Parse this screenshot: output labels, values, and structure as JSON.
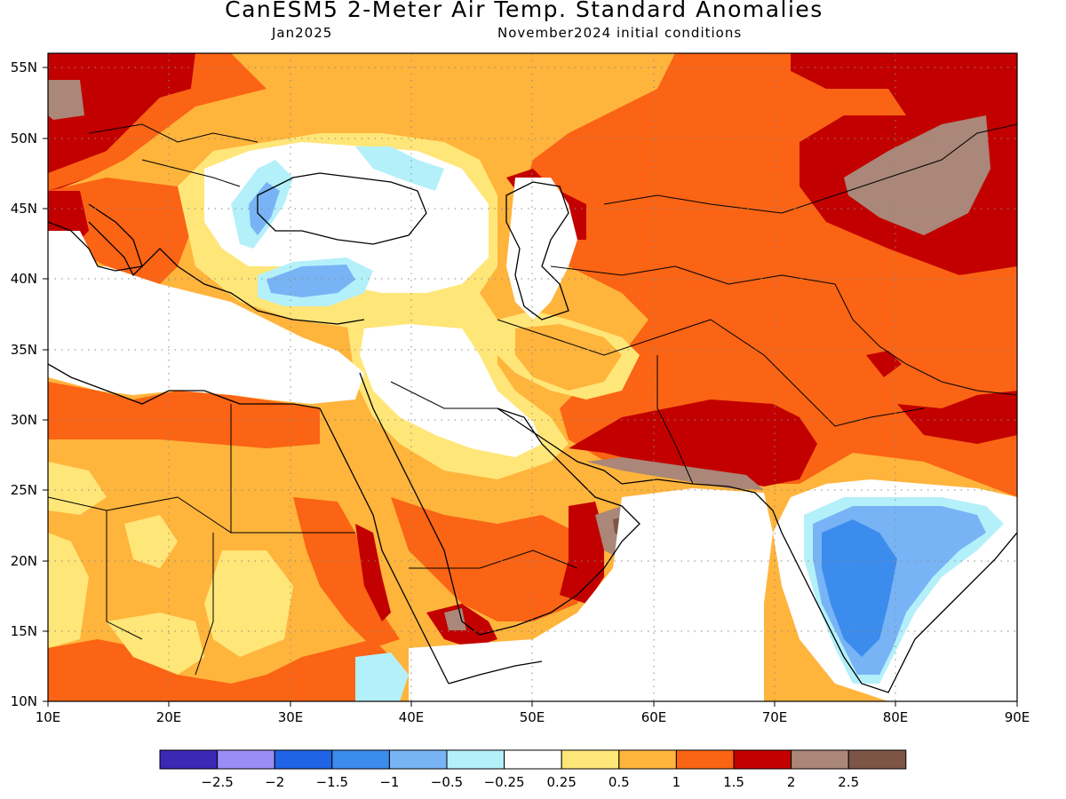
{
  "figure": {
    "title": "CanESM5 2-Meter Air Temp. Standard Anomalies",
    "valid_month": "Jan2025",
    "initial_conditions": "November2024 initial conditions"
  },
  "map": {
    "lon_range": [
      10,
      90
    ],
    "lat_range": [
      10,
      56
    ],
    "projection": "equirectangular",
    "grid": "dotted",
    "lat_labels": [
      "55N",
      "50N",
      "45N",
      "40N",
      "35N",
      "30N",
      "25N",
      "20N",
      "15N",
      "10N"
    ],
    "lon_labels": [
      "10E",
      "20E",
      "30E",
      "40E",
      "50E",
      "60E",
      "70E",
      "80E",
      "90E"
    ]
  },
  "colorbar": {
    "colors": [
      "#3b28b4",
      "#9c8cf6",
      "#1f64e6",
      "#3c8ced",
      "#78b4f5",
      "#b4f0fa",
      "#ffffff",
      "#ffe678",
      "#ffb43c",
      "#fa6414",
      "#c30000",
      "#aa8778",
      "#7d5546"
    ],
    "tick_labels": [
      "−2.5",
      "−2",
      "−1.5",
      "−1",
      "−0.5",
      "−0.25",
      "0.25",
      "0.5",
      "1",
      "1.5",
      "2",
      "2.5"
    ]
  },
  "palette": {
    "cold_moderate": "#78b4f5",
    "cold_strong": "#3c8ced",
    "cold_weak": "#b4f0fa",
    "neutral": "#ffffff",
    "warm_weak": "#ffe678",
    "warm_moderate": "#ffb43c",
    "warm_strong": "#fa6414",
    "warm_very_strong": "#c30000",
    "warm_extreme": "#aa8778",
    "warm_max": "#7d5546"
  }
}
